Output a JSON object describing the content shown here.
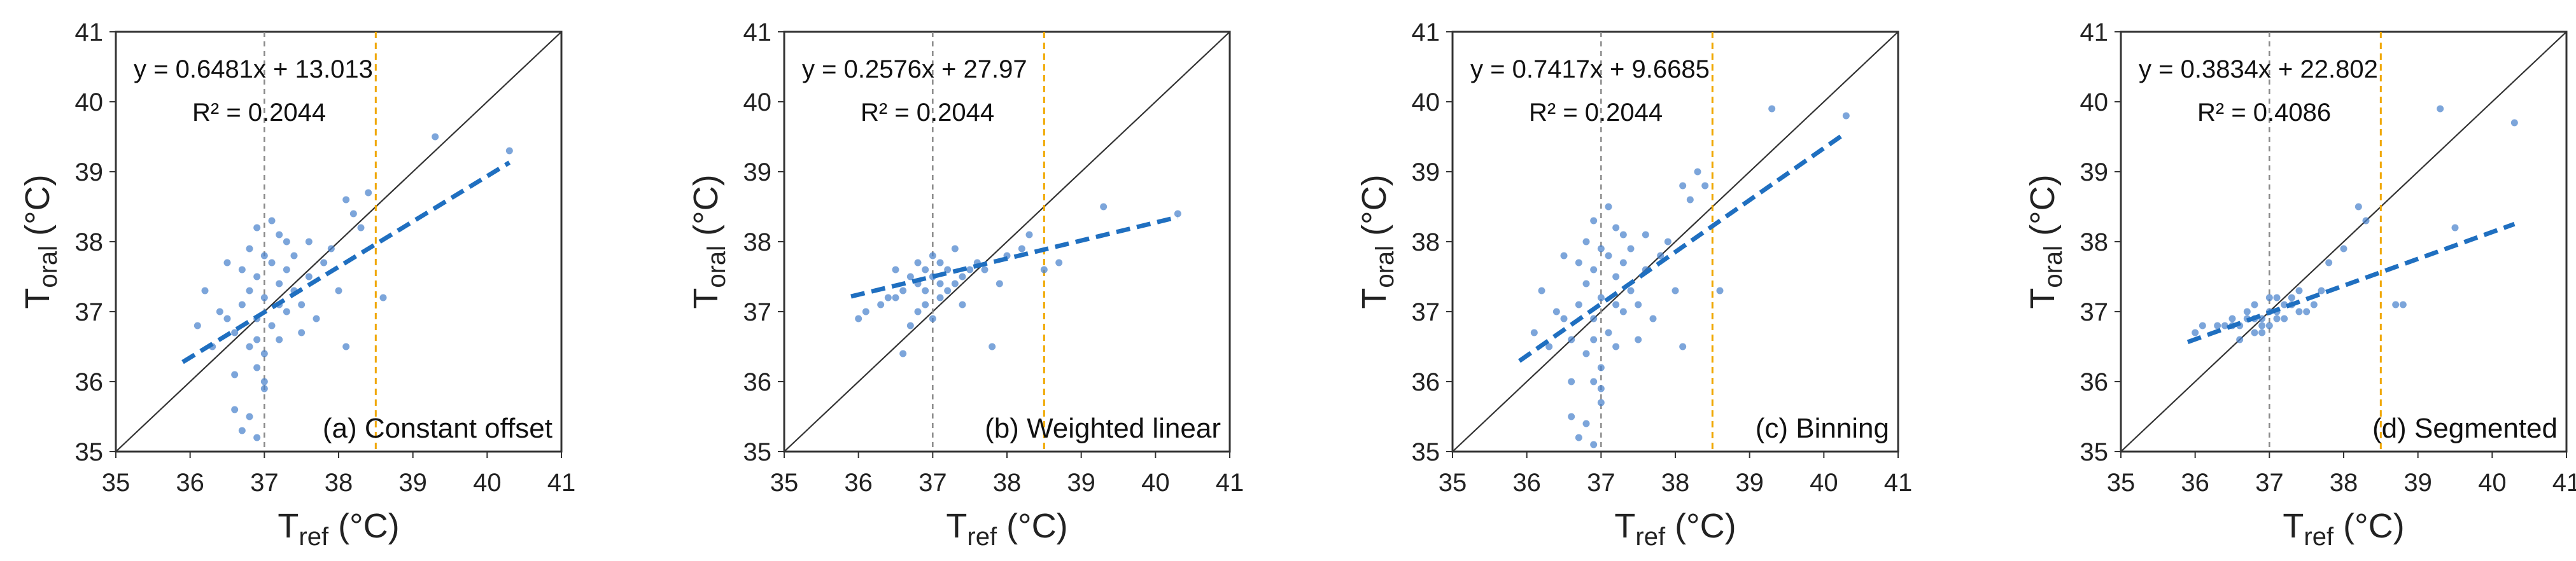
{
  "chart_data": [
    {
      "type": "scatter",
      "panel_label": "(a) Constant offset",
      "equation": "y = 0.6481x + 13.013",
      "r_squared": "R² = 0.2044",
      "xlabel_main": "T",
      "xlabel_sub": "ref",
      "xlabel_unit": " (°C)",
      "ylabel_main": "T",
      "ylabel_sub": "oral",
      "ylabel_unit": " (°C)",
      "xlim": [
        35,
        41
      ],
      "ylim": [
        35,
        41
      ],
      "xticks": [
        "35",
        "36",
        "37",
        "38",
        "39",
        "40",
        "41"
      ],
      "yticks": [
        "35",
        "36",
        "37",
        "38",
        "39",
        "40",
        "41"
      ],
      "fit": {
        "slope": 0.6481,
        "intercept": 13.013,
        "x_range": [
          35.9,
          40.3
        ]
      },
      "identity_line": true,
      "gray_vline_x": 37.0,
      "orange_vline_x": 38.5,
      "points": [
        [
          37.2,
          37.4
        ],
        [
          36.8,
          36.5
        ],
        [
          37.0,
          37.2
        ],
        [
          36.9,
          36.9
        ],
        [
          37.3,
          37.6
        ],
        [
          36.7,
          37.1
        ],
        [
          37.1,
          36.8
        ],
        [
          37.4,
          37.3
        ],
        [
          36.6,
          36.7
        ],
        [
          37.0,
          37.8
        ],
        [
          36.9,
          37.5
        ],
        [
          37.2,
          36.6
        ],
        [
          36.8,
          37.3
        ],
        [
          37.5,
          37.1
        ],
        [
          36.5,
          36.9
        ],
        [
          37.0,
          36.4
        ],
        [
          37.1,
          37.7
        ],
        [
          36.9,
          36.2
        ],
        [
          37.3,
          37.0
        ],
        [
          36.7,
          37.6
        ],
        [
          37.6,
          37.5
        ],
        [
          36.4,
          37.0
        ],
        [
          37.0,
          35.9
        ],
        [
          36.8,
          35.5
        ],
        [
          36.9,
          35.2
        ],
        [
          37.2,
          38.1
        ],
        [
          37.8,
          37.7
        ],
        [
          38.1,
          38.6
        ],
        [
          38.2,
          38.4
        ],
        [
          37.9,
          37.9
        ],
        [
          38.3,
          38.2
        ],
        [
          38.0,
          37.3
        ],
        [
          36.2,
          37.3
        ],
        [
          36.1,
          36.8
        ],
        [
          39.3,
          39.5
        ],
        [
          40.3,
          39.3
        ],
        [
          38.6,
          37.2
        ],
        [
          38.1,
          36.5
        ],
        [
          37.7,
          36.9
        ],
        [
          36.6,
          36.1
        ],
        [
          36.6,
          35.6
        ],
        [
          36.7,
          35.3
        ],
        [
          37.3,
          38.0
        ],
        [
          37.4,
          37.8
        ],
        [
          36.9,
          38.2
        ],
        [
          37.1,
          38.3
        ],
        [
          37.6,
          38.0
        ],
        [
          38.4,
          38.7
        ],
        [
          36.3,
          36.5
        ],
        [
          36.5,
          37.7
        ],
        [
          37.0,
          36.0
        ],
        [
          36.8,
          37.9
        ],
        [
          37.5,
          36.7
        ],
        [
          37.2,
          37.1
        ],
        [
          36.9,
          36.6
        ]
      ]
    },
    {
      "type": "scatter",
      "panel_label": "(b) Weighted linear",
      "equation": "y = 0.2576x + 27.97",
      "r_squared": "R² = 0.2044",
      "xlabel_main": "T",
      "xlabel_sub": "ref",
      "xlabel_unit": " (°C)",
      "ylabel_main": "T",
      "ylabel_sub": "oral",
      "ylabel_unit": " (°C)",
      "xlim": [
        35,
        41
      ],
      "ylim": [
        35,
        41
      ],
      "xticks": [
        "35",
        "36",
        "37",
        "38",
        "39",
        "40",
        "41"
      ],
      "yticks": [
        "35",
        "36",
        "37",
        "38",
        "39",
        "40",
        "41"
      ],
      "fit": {
        "slope": 0.2576,
        "intercept": 27.97,
        "x_range": [
          35.9,
          40.3
        ]
      },
      "identity_line": true,
      "gray_vline_x": 37.0,
      "orange_vline_x": 38.5,
      "points": [
        [
          37.0,
          37.5
        ],
        [
          36.8,
          37.4
        ],
        [
          37.2,
          37.6
        ],
        [
          36.9,
          37.3
        ],
        [
          37.1,
          37.7
        ],
        [
          36.7,
          37.5
        ],
        [
          37.3,
          37.4
        ],
        [
          36.6,
          37.3
        ],
        [
          37.0,
          37.8
        ],
        [
          36.9,
          37.6
        ],
        [
          37.4,
          37.5
        ],
        [
          36.5,
          37.2
        ],
        [
          37.2,
          37.3
        ],
        [
          36.8,
          37.7
        ],
        [
          37.5,
          37.6
        ],
        [
          36.4,
          37.2
        ],
        [
          37.1,
          37.4
        ],
        [
          36.9,
          37.1
        ],
        [
          37.6,
          37.7
        ],
        [
          36.3,
          37.1
        ],
        [
          37.0,
          36.9
        ],
        [
          36.7,
          36.8
        ],
        [
          37.3,
          37.9
        ],
        [
          37.7,
          37.6
        ],
        [
          38.0,
          37.8
        ],
        [
          38.2,
          37.9
        ],
        [
          36.1,
          37.0
        ],
        [
          36.0,
          36.9
        ],
        [
          39.3,
          38.5
        ],
        [
          40.3,
          38.4
        ],
        [
          38.5,
          37.6
        ],
        [
          38.7,
          37.7
        ],
        [
          37.8,
          36.5
        ],
        [
          36.6,
          36.4
        ],
        [
          38.3,
          38.1
        ],
        [
          37.9,
          37.4
        ],
        [
          37.4,
          37.1
        ],
        [
          36.8,
          37.0
        ],
        [
          37.1,
          37.2
        ],
        [
          36.5,
          37.6
        ]
      ]
    },
    {
      "type": "scatter",
      "panel_label": "(c) Binning",
      "equation": "y = 0.7417x + 9.6685",
      "r_squared": "R² = 0.2044",
      "xlabel_main": "T",
      "xlabel_sub": "ref",
      "xlabel_unit": " (°C)",
      "ylabel_main": "T",
      "ylabel_sub": "oral",
      "ylabel_unit": " (°C)",
      "xlim": [
        35,
        41
      ],
      "ylim": [
        35,
        41
      ],
      "xticks": [
        "35",
        "36",
        "37",
        "38",
        "39",
        "40",
        "41"
      ],
      "yticks": [
        "35",
        "36",
        "37",
        "38",
        "39",
        "40",
        "41"
      ],
      "fit": {
        "slope": 0.7417,
        "intercept": 9.6685,
        "x_range": [
          35.9,
          40.3
        ]
      },
      "identity_line": true,
      "gray_vline_x": 37.0,
      "orange_vline_x": 38.5,
      "points": [
        [
          37.2,
          37.5
        ],
        [
          36.8,
          36.4
        ],
        [
          37.0,
          37.2
        ],
        [
          36.9,
          36.9
        ],
        [
          37.3,
          37.7
        ],
        [
          36.7,
          37.1
        ],
        [
          37.1,
          36.7
        ],
        [
          37.4,
          37.3
        ],
        [
          36.6,
          36.6
        ],
        [
          37.0,
          37.9
        ],
        [
          36.9,
          37.6
        ],
        [
          37.2,
          36.5
        ],
        [
          36.8,
          37.4
        ],
        [
          37.5,
          37.1
        ],
        [
          36.5,
          36.9
        ],
        [
          37.0,
          36.2
        ],
        [
          37.1,
          37.8
        ],
        [
          36.9,
          36.0
        ],
        [
          37.3,
          37.0
        ],
        [
          36.7,
          37.7
        ],
        [
          37.6,
          37.6
        ],
        [
          36.4,
          37.0
        ],
        [
          37.0,
          35.7
        ],
        [
          36.8,
          35.4
        ],
        [
          36.9,
          35.1
        ],
        [
          37.2,
          38.2
        ],
        [
          37.8,
          37.8
        ],
        [
          38.1,
          38.8
        ],
        [
          38.2,
          38.6
        ],
        [
          37.9,
          38.0
        ],
        [
          38.3,
          39.0
        ],
        [
          38.0,
          37.3
        ],
        [
          36.2,
          37.3
        ],
        [
          36.1,
          36.7
        ],
        [
          39.3,
          39.9
        ],
        [
          40.3,
          39.8
        ],
        [
          38.6,
          37.3
        ],
        [
          38.1,
          36.5
        ],
        [
          37.7,
          36.9
        ],
        [
          36.6,
          36.0
        ],
        [
          36.6,
          35.5
        ],
        [
          36.7,
          35.2
        ],
        [
          37.3,
          38.1
        ],
        [
          37.4,
          37.9
        ],
        [
          36.9,
          38.3
        ],
        [
          37.1,
          38.5
        ],
        [
          37.6,
          38.1
        ],
        [
          38.4,
          38.8
        ],
        [
          36.3,
          36.5
        ],
        [
          36.5,
          37.8
        ],
        [
          37.0,
          35.9
        ],
        [
          36.8,
          38.0
        ],
        [
          37.5,
          36.6
        ],
        [
          37.2,
          37.1
        ],
        [
          36.9,
          36.6
        ]
      ]
    },
    {
      "type": "scatter",
      "panel_label": "(d) Segmented",
      "equation": "y = 0.3834x + 22.802",
      "r_squared": "R² = 0.4086",
      "xlabel_main": "T",
      "xlabel_sub": "ref",
      "xlabel_unit": " (°C)",
      "ylabel_main": "T",
      "ylabel_sub": "oral",
      "ylabel_unit": " (°C)",
      "xlim": [
        35,
        41
      ],
      "ylim": [
        35,
        41
      ],
      "xticks": [
        "35",
        "36",
        "37",
        "38",
        "39",
        "40",
        "41"
      ],
      "yticks": [
        "35",
        "36",
        "37",
        "38",
        "39",
        "40",
        "41"
      ],
      "fit": {
        "slope": 0.3834,
        "intercept": 22.802,
        "x_range": [
          35.9,
          40.3
        ]
      },
      "identity_line": true,
      "gray_vline_x": 37.0,
      "orange_vline_x": 38.5,
      "points": [
        [
          37.0,
          37.0
        ],
        [
          36.8,
          36.9
        ],
        [
          37.2,
          37.1
        ],
        [
          36.9,
          36.8
        ],
        [
          37.1,
          37.0
        ],
        [
          36.7,
          36.9
        ],
        [
          37.3,
          37.1
        ],
        [
          36.6,
          36.8
        ],
        [
          37.0,
          37.2
        ],
        [
          36.9,
          36.9
        ],
        [
          37.4,
          37.0
        ],
        [
          36.5,
          36.8
        ],
        [
          37.2,
          36.9
        ],
        [
          36.8,
          37.1
        ],
        [
          37.5,
          37.0
        ],
        [
          36.4,
          36.8
        ],
        [
          37.1,
          36.9
        ],
        [
          36.9,
          36.7
        ],
        [
          37.6,
          37.1
        ],
        [
          36.3,
          36.8
        ],
        [
          37.0,
          36.8
        ],
        [
          36.7,
          37.0
        ],
        [
          37.3,
          37.2
        ],
        [
          37.7,
          37.3
        ],
        [
          38.0,
          37.9
        ],
        [
          38.2,
          38.5
        ],
        [
          36.1,
          36.8
        ],
        [
          36.0,
          36.7
        ],
        [
          39.3,
          39.9
        ],
        [
          40.3,
          39.7
        ],
        [
          39.5,
          38.2
        ],
        [
          38.7,
          37.1
        ],
        [
          37.8,
          37.7
        ],
        [
          38.3,
          38.3
        ],
        [
          36.6,
          36.6
        ],
        [
          37.4,
          37.3
        ],
        [
          36.8,
          36.7
        ],
        [
          37.1,
          37.2
        ],
        [
          36.5,
          36.9
        ],
        [
          38.8,
          37.1
        ]
      ]
    }
  ]
}
